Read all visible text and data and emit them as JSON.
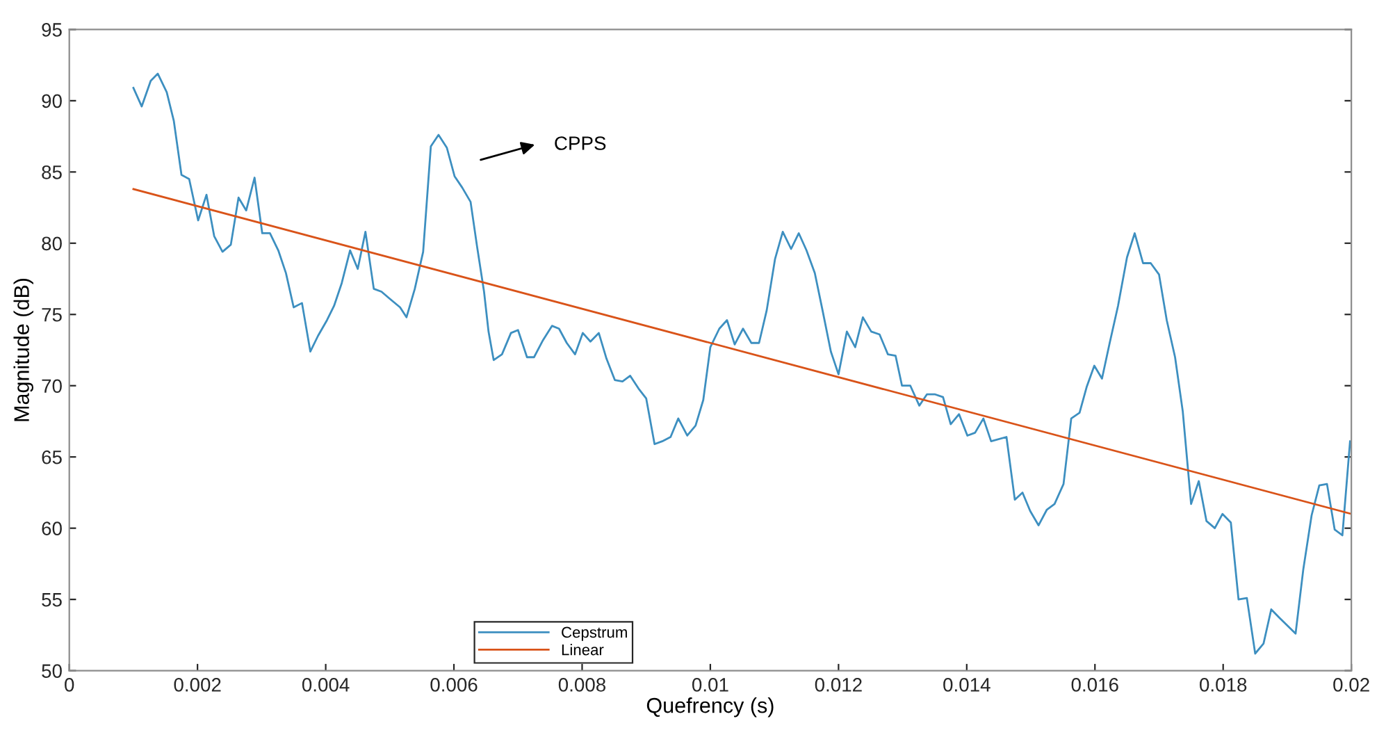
{
  "chart_data": {
    "type": "line",
    "xlabel": "Quefrency (s)",
    "ylabel": "Magnitude (dB)",
    "xlim": [
      0,
      0.02
    ],
    "ylim": [
      50,
      95
    ],
    "xticks": [
      0,
      0.002,
      0.004,
      0.006,
      0.008,
      0.01,
      0.012,
      0.014,
      0.016,
      0.018,
      0.02
    ],
    "yticks": [
      50,
      55,
      60,
      65,
      70,
      75,
      80,
      85,
      90,
      95
    ],
    "grid": false,
    "legend": "bottom",
    "marker": "none",
    "line_style": "solid",
    "annotations": [
      "CPPS"
    ],
    "series": [
      {
        "name": "Cepstrum",
        "color": "#3d8fc0",
        "x": [
          0.001,
          0.00113,
          0.00127,
          0.00138,
          0.00152,
          0.00163,
          0.00175,
          0.00187,
          0.00201,
          0.00214,
          0.00226,
          0.00239,
          0.00252,
          0.00264,
          0.00276,
          0.00289,
          0.00301,
          0.00313,
          0.00326,
          0.00338,
          0.0035,
          0.00363,
          0.00376,
          0.00388,
          0.00402,
          0.00413,
          0.00425,
          0.00438,
          0.0045,
          0.00462,
          0.00475,
          0.00487,
          0.005,
          0.00516,
          0.00526,
          0.00539,
          0.00552,
          0.00564,
          0.00576,
          0.00589,
          0.00601,
          0.00613,
          0.00626,
          0.00636,
          0.00647,
          0.00654,
          0.00662,
          0.00675,
          0.00689,
          0.007,
          0.00714,
          0.00725,
          0.00739,
          0.00753,
          0.00764,
          0.00776,
          0.00789,
          0.00801,
          0.00813,
          0.00826,
          0.00838,
          0.00851,
          0.00863,
          0.00875,
          0.00888,
          0.009,
          0.00913,
          0.00925,
          0.00938,
          0.0095,
          0.00964,
          0.00977,
          0.00989,
          0.01,
          0.01014,
          0.01026,
          0.01038,
          0.01051,
          0.01064,
          0.01076,
          0.01088,
          0.01101,
          0.01113,
          0.01126,
          0.01138,
          0.0115,
          0.01163,
          0.01175,
          0.01188,
          0.012,
          0.01213,
          0.01226,
          0.01238,
          0.01251,
          0.01264,
          0.01277,
          0.01289,
          0.01299,
          0.01312,
          0.01326,
          0.01338,
          0.0135,
          0.01363,
          0.01375,
          0.01388,
          0.01401,
          0.01413,
          0.01426,
          0.01438,
          0.01462,
          0.01475,
          0.01487,
          0.01499,
          0.01512,
          0.01525,
          0.01537,
          0.01551,
          0.01563,
          0.01576,
          0.01587,
          0.01599,
          0.01611,
          0.01623,
          0.01636,
          0.0165,
          0.01662,
          0.01675,
          0.01687,
          0.017,
          0.01712,
          0.01725,
          0.01737,
          0.0175,
          0.01762,
          0.01774,
          0.01787,
          0.01799,
          0.01812,
          0.01824,
          0.01837,
          0.0185,
          0.01863,
          0.01875,
          0.01888,
          0.01913,
          0.01925,
          0.01938,
          0.0195,
          0.01962,
          0.01974,
          0.01986,
          0.01998
        ],
        "values": [
          90.9,
          89.6,
          91.4,
          91.9,
          90.6,
          88.6,
          84.8,
          84.5,
          81.6,
          83.4,
          80.5,
          79.4,
          79.9,
          83.2,
          82.3,
          84.6,
          80.7,
          80.7,
          79.5,
          77.9,
          75.5,
          75.8,
          72.4,
          73.5,
          74.6,
          75.6,
          77.2,
          79.5,
          78.2,
          80.8,
          76.8,
          76.6,
          76.1,
          75.5,
          74.8,
          76.8,
          79.4,
          86.8,
          87.6,
          86.7,
          84.7,
          83.9,
          82.9,
          79.8,
          76.6,
          73.8,
          71.8,
          72.2,
          73.7,
          73.9,
          72.0,
          72.0,
          73.2,
          74.2,
          74.0,
          73.0,
          72.2,
          73.7,
          73.1,
          73.7,
          71.9,
          70.4,
          70.3,
          70.7,
          69.8,
          69.1,
          65.9,
          66.1,
          66.4,
          67.7,
          66.5,
          67.2,
          69.0,
          72.7,
          74.0,
          74.6,
          72.9,
          74.0,
          73.0,
          73.0,
          75.3,
          78.9,
          80.8,
          79.6,
          80.7,
          79.5,
          77.9,
          75.3,
          72.4,
          70.8,
          73.8,
          72.7,
          74.8,
          73.8,
          73.6,
          72.2,
          72.1,
          70.0,
          70.0,
          68.6,
          69.4,
          69.4,
          69.2,
          67.3,
          68.0,
          66.5,
          66.7,
          67.7,
          66.1,
          66.4,
          62.0,
          62.5,
          61.2,
          60.2,
          61.3,
          61.7,
          63.1,
          67.7,
          68.1,
          69.9,
          71.4,
          70.5,
          73.0,
          75.6,
          79.0,
          80.7,
          78.6,
          78.6,
          77.8,
          74.6,
          72.0,
          68.2,
          61.7,
          63.3,
          60.5,
          60.0,
          61.0,
          60.4,
          55.0,
          55.1,
          51.2,
          51.9,
          54.3,
          53.7,
          52.6,
          57.1,
          60.9,
          63.0,
          63.1,
          59.9,
          59.5,
          66.1
        ]
      },
      {
        "name": "Linear",
        "color": "#d95319",
        "x": [
          0.001,
          0.02
        ],
        "values": [
          83.8,
          61.0
        ]
      }
    ]
  }
}
